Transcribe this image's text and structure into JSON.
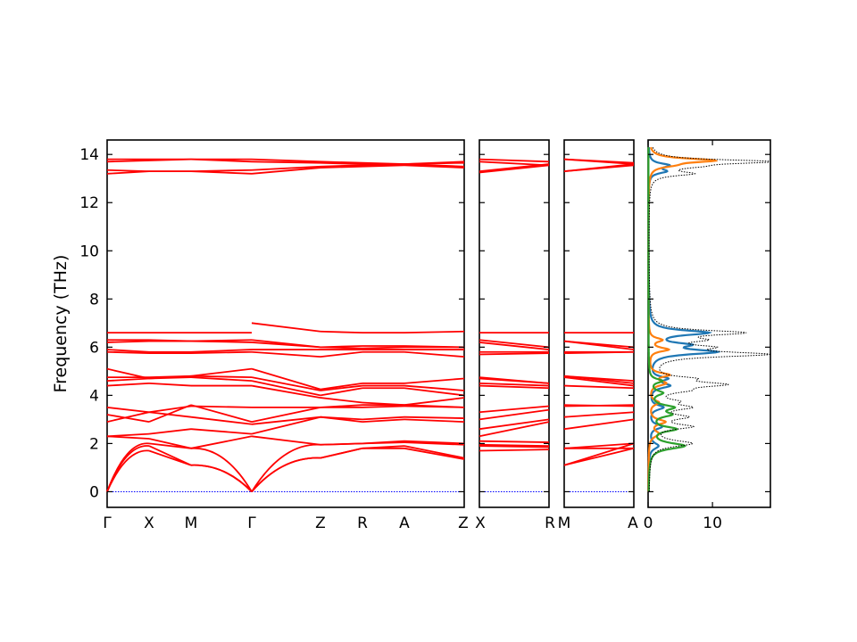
{
  "chart_data": {
    "type": "line",
    "ylabel": "Frequency (THz)",
    "ylim": [
      -0.65,
      14.6
    ],
    "yticks": [
      0,
      2,
      4,
      6,
      8,
      10,
      12,
      14
    ],
    "dos_xticks": [
      0,
      10
    ],
    "dos_xlim": [
      0,
      19
    ],
    "colors": {
      "band": "#ff0000",
      "zero_line": "#0000ff",
      "dos_total": "#000000",
      "dos_series": [
        "#1f77b4",
        "#ff7f0e",
        "#2ca02c"
      ]
    },
    "band_panels": [
      {
        "segments": [
          {
            "from": "Γ",
            "to": "X"
          },
          {
            "from": "X",
            "to": "M"
          },
          {
            "from": "M",
            "to": "Γ"
          }
        ],
        "tick_labels": [
          "Γ",
          "X",
          "M",
          "Γ"
        ]
      },
      {
        "segments": [
          {
            "from": "Γ",
            "to": "Z"
          },
          {
            "from": "Z",
            "to": "R"
          },
          {
            "from": "R",
            "to": "A"
          },
          {
            "from": "A",
            "to": "Z"
          }
        ],
        "tick_labels": [
          "Z",
          "R",
          "A",
          "Z"
        ]
      },
      {
        "segments": [
          {
            "from": "X",
            "to": "R"
          }
        ],
        "tick_labels": [
          "X",
          "R"
        ]
      },
      {
        "segments": [
          {
            "from": "M",
            "to": "A"
          }
        ],
        "tick_labels": [
          "M",
          "A"
        ]
      }
    ],
    "bands": {
      "Γ-X": [
        [
          0,
          1.9
        ],
        [
          0,
          1.7
        ],
        [
          0,
          2.0
        ],
        [
          2.3,
          2.2
        ],
        [
          2.3,
          2.4
        ],
        [
          2.9,
          3.3
        ],
        [
          3.2,
          2.9
        ],
        [
          3.5,
          3.3
        ],
        [
          4.4,
          4.5
        ],
        [
          4.6,
          4.7
        ],
        [
          4.75,
          4.75
        ],
        [
          5.1,
          4.7
        ],
        [
          5.8,
          5.75
        ],
        [
          5.9,
          5.8
        ],
        [
          6.2,
          6.25
        ],
        [
          6.3,
          6.3
        ],
        [
          6.6,
          6.6
        ],
        [
          13.2,
          13.3
        ],
        [
          13.35,
          13.3
        ],
        [
          13.7,
          13.75
        ],
        [
          13.8,
          13.8
        ]
      ],
      "X-M": [
        [
          1.9,
          1.1
        ],
        [
          1.7,
          1.1
        ],
        [
          2.0,
          1.8
        ],
        [
          2.2,
          1.8
        ],
        [
          2.4,
          2.6
        ],
        [
          3.3,
          3.1
        ],
        [
          2.9,
          3.6
        ],
        [
          3.3,
          3.55
        ],
        [
          4.5,
          4.4
        ],
        [
          4.7,
          4.75
        ],
        [
          4.75,
          4.8
        ],
        [
          4.7,
          4.8
        ],
        [
          5.75,
          5.75
        ],
        [
          5.8,
          5.8
        ],
        [
          6.25,
          6.25
        ],
        [
          6.3,
          6.25
        ],
        [
          6.6,
          6.6
        ],
        [
          13.3,
          13.3
        ],
        [
          13.3,
          13.3
        ],
        [
          13.75,
          13.8
        ],
        [
          13.8,
          13.8
        ]
      ],
      "M-Γ": [
        [
          1.1,
          0
        ],
        [
          1.1,
          0
        ],
        [
          1.8,
          0
        ],
        [
          1.8,
          2.3
        ],
        [
          2.6,
          2.4
        ],
        [
          3.1,
          2.8
        ],
        [
          3.6,
          2.9
        ],
        [
          3.55,
          3.5
        ],
        [
          4.4,
          4.4
        ],
        [
          4.75,
          4.6
        ],
        [
          4.8,
          4.75
        ],
        [
          4.8,
          5.1
        ],
        [
          5.75,
          5.8
        ],
        [
          5.8,
          5.9
        ],
        [
          6.25,
          6.2
        ],
        [
          6.25,
          6.3
        ],
        [
          6.6,
          6.6
        ],
        [
          13.3,
          13.2
        ],
        [
          13.3,
          13.35
        ],
        [
          13.8,
          13.7
        ],
        [
          13.8,
          13.8
        ]
      ],
      "Γ-Z": [
        [
          0,
          1.4
        ],
        [
          0,
          1.4
        ],
        [
          0,
          1.95
        ],
        [
          2.3,
          1.95
        ],
        [
          2.4,
          3.1
        ],
        [
          2.8,
          3.1
        ],
        [
          2.9,
          3.5
        ],
        [
          3.5,
          3.5
        ],
        [
          4.4,
          3.9
        ],
        [
          4.6,
          4.0
        ],
        [
          4.75,
          4.2
        ],
        [
          5.1,
          4.25
        ],
        [
          5.8,
          5.6
        ],
        [
          5.9,
          5.9
        ],
        [
          6.2,
          6.0
        ],
        [
          6.3,
          6.0
        ],
        [
          7.0,
          6.65
        ],
        [
          13.2,
          13.45
        ],
        [
          13.35,
          13.5
        ],
        [
          13.7,
          13.65
        ],
        [
          13.8,
          13.7
        ]
      ],
      "Z-R": [
        [
          1.4,
          1.8
        ],
        [
          1.4,
          1.8
        ],
        [
          1.95,
          2.0
        ],
        [
          1.95,
          2.0
        ],
        [
          3.1,
          2.9
        ],
        [
          3.1,
          3.0
        ],
        [
          3.5,
          3.5
        ],
        [
          3.5,
          3.6
        ],
        [
          3.9,
          3.7
        ],
        [
          4.0,
          4.3
        ],
        [
          4.2,
          4.4
        ],
        [
          4.25,
          4.5
        ],
        [
          5.6,
          5.8
        ],
        [
          5.9,
          5.9
        ],
        [
          6.0,
          5.95
        ],
        [
          6.0,
          6.05
        ],
        [
          6.65,
          6.6
        ],
        [
          13.45,
          13.5
        ],
        [
          13.5,
          13.55
        ],
        [
          13.65,
          13.6
        ],
        [
          13.7,
          13.65
        ]
      ],
      "R-A": [
        [
          1.8,
          1.8
        ],
        [
          1.8,
          1.9
        ],
        [
          2.0,
          2.05
        ],
        [
          2.0,
          2.1
        ],
        [
          2.9,
          3.0
        ],
        [
          3.0,
          3.1
        ],
        [
          3.5,
          3.55
        ],
        [
          3.6,
          3.6
        ],
        [
          3.7,
          3.6
        ],
        [
          4.3,
          4.3
        ],
        [
          4.4,
          4.4
        ],
        [
          4.5,
          4.5
        ],
        [
          5.8,
          5.8
        ],
        [
          5.9,
          5.9
        ],
        [
          5.95,
          6.0
        ],
        [
          6.05,
          6.05
        ],
        [
          6.6,
          6.6
        ],
        [
          13.5,
          13.55
        ],
        [
          13.55,
          13.6
        ],
        [
          13.6,
          13.6
        ],
        [
          13.65,
          13.6
        ]
      ],
      "A-Z": [
        [
          1.8,
          1.35
        ],
        [
          1.9,
          1.4
        ],
        [
          2.05,
          1.95
        ],
        [
          2.1,
          2.0
        ],
        [
          3.0,
          2.9
        ],
        [
          3.1,
          3.05
        ],
        [
          3.55,
          3.5
        ],
        [
          3.6,
          3.5
        ],
        [
          3.6,
          3.9
        ],
        [
          4.3,
          4.0
        ],
        [
          4.4,
          4.2
        ],
        [
          4.5,
          4.7
        ],
        [
          5.8,
          5.6
        ],
        [
          5.9,
          5.9
        ],
        [
          6.0,
          6.0
        ],
        [
          6.05,
          6.0
        ],
        [
          6.6,
          6.65
        ],
        [
          13.55,
          13.45
        ],
        [
          13.6,
          13.5
        ],
        [
          13.6,
          13.65
        ],
        [
          13.6,
          13.7
        ]
      ],
      "X-R": [
        [
          1.7,
          1.75
        ],
        [
          1.9,
          1.85
        ],
        [
          1.95,
          1.9
        ],
        [
          2.1,
          2.05
        ],
        [
          2.3,
          2.9
        ],
        [
          2.6,
          3.0
        ],
        [
          3.0,
          3.4
        ],
        [
          3.3,
          3.55
        ],
        [
          4.4,
          4.3
        ],
        [
          4.5,
          4.4
        ],
        [
          4.7,
          4.5
        ],
        [
          4.75,
          4.5
        ],
        [
          5.7,
          5.75
        ],
        [
          5.8,
          5.8
        ],
        [
          6.2,
          5.9
        ],
        [
          6.3,
          6.0
        ],
        [
          6.6,
          6.6
        ],
        [
          13.25,
          13.55
        ],
        [
          13.3,
          13.6
        ],
        [
          13.7,
          13.55
        ],
        [
          13.8,
          13.7
        ]
      ],
      "M-A": [
        [
          1.1,
          1.8
        ],
        [
          1.1,
          2.0
        ],
        [
          1.8,
          2.0
        ],
        [
          1.8,
          1.8
        ],
        [
          2.6,
          3.0
        ],
        [
          3.1,
          3.3
        ],
        [
          3.6,
          3.55
        ],
        [
          3.55,
          3.6
        ],
        [
          4.4,
          4.3
        ],
        [
          4.75,
          4.4
        ],
        [
          4.8,
          4.6
        ],
        [
          4.8,
          4.5
        ],
        [
          5.75,
          5.8
        ],
        [
          5.8,
          5.8
        ],
        [
          6.25,
          6.0
        ],
        [
          6.25,
          5.9
        ],
        [
          6.6,
          6.6
        ],
        [
          13.3,
          13.55
        ],
        [
          13.3,
          13.6
        ],
        [
          13.8,
          13.6
        ],
        [
          13.8,
          13.65
        ]
      ]
    },
    "dos": {
      "total_peaks": [
        [
          2.0,
          6.5,
          0.15
        ],
        [
          2.7,
          6.0,
          0.12
        ],
        [
          3.1,
          5.0,
          0.12
        ],
        [
          3.5,
          5.5,
          0.12
        ],
        [
          3.75,
          3.0,
          0.1
        ],
        [
          4.2,
          4.0,
          0.12
        ],
        [
          4.45,
          10.5,
          0.12
        ],
        [
          4.7,
          5.0,
          0.1
        ],
        [
          5.7,
          17.5,
          0.12
        ],
        [
          6.0,
          7.0,
          0.1
        ],
        [
          6.3,
          6.0,
          0.1
        ],
        [
          6.6,
          14.0,
          0.12
        ],
        [
          13.2,
          6.0,
          0.1
        ],
        [
          13.5,
          4.5,
          0.1
        ],
        [
          13.7,
          18.5,
          0.1
        ]
      ],
      "series": [
        {
          "peaks": [
            [
              1.9,
              1.5,
              0.15
            ],
            [
              2.7,
              2.0,
              0.12
            ],
            [
              3.5,
              2.2,
              0.12
            ],
            [
              4.4,
              3.0,
              0.12
            ],
            [
              4.7,
              2.5,
              0.1
            ],
            [
              5.8,
              10.0,
              0.12
            ],
            [
              6.1,
              5.0,
              0.1
            ],
            [
              6.6,
              9.0,
              0.12
            ],
            [
              13.3,
              2.5,
              0.1
            ],
            [
              13.55,
              3.0,
              0.1
            ]
          ]
        },
        {
          "peaks": [
            [
              2.4,
              1.5,
              0.15
            ],
            [
              2.9,
              2.5,
              0.12
            ],
            [
              3.7,
              1.5,
              0.12
            ],
            [
              4.5,
              2.5,
              0.12
            ],
            [
              4.85,
              3.0,
              0.1
            ],
            [
              5.9,
              3.0,
              0.1
            ],
            [
              6.3,
              2.0,
              0.1
            ],
            [
              13.55,
              2.5,
              0.1
            ],
            [
              13.75,
              10.0,
              0.1
            ]
          ]
        },
        {
          "peaks": [
            [
              1.9,
              5.5,
              0.15
            ],
            [
              2.6,
              4.0,
              0.12
            ],
            [
              3.2,
              3.0,
              0.12
            ],
            [
              3.5,
              3.5,
              0.12
            ],
            [
              4.1,
              2.0,
              0.12
            ],
            [
              4.6,
              2.0,
              0.1
            ]
          ]
        }
      ]
    }
  }
}
